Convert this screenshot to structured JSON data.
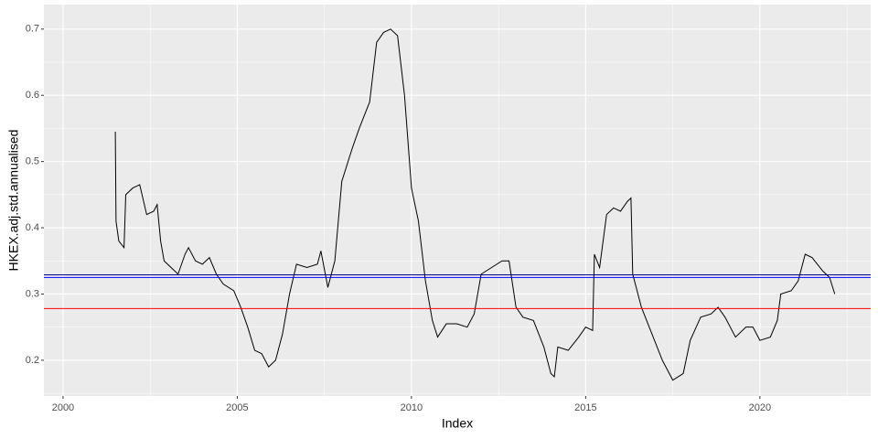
{
  "chart_data": {
    "type": "line",
    "x_label": "Index",
    "y_label": "HKEX.adj.std.annualised",
    "x": [
      2001.5,
      2001.52,
      2001.6,
      2001.75,
      2001.8,
      2002.0,
      2002.2,
      2002.4,
      2002.6,
      2002.7,
      2002.8,
      2002.9,
      2003.1,
      2003.3,
      2003.5,
      2003.6,
      2003.8,
      2004.0,
      2004.2,
      2004.4,
      2004.6,
      2004.9,
      2005.1,
      2005.3,
      2005.5,
      2005.7,
      2005.9,
      2006.1,
      2006.3,
      2006.5,
      2006.7,
      2007.0,
      2007.3,
      2007.4,
      2007.6,
      2007.8,
      2008.0,
      2008.3,
      2008.5,
      2008.8,
      2009.0,
      2009.2,
      2009.4,
      2009.6,
      2009.8,
      2010.0,
      2010.2,
      2010.4,
      2010.6,
      2010.75,
      2011.0,
      2011.3,
      2011.6,
      2011.8,
      2012.0,
      2012.3,
      2012.6,
      2012.8,
      2013.0,
      2013.2,
      2013.5,
      2013.8,
      2014.0,
      2014.1,
      2014.2,
      2014.5,
      2014.8,
      2015.0,
      2015.2,
      2015.25,
      2015.4,
      2015.6,
      2015.8,
      2016.0,
      2016.2,
      2016.3,
      2016.35,
      2016.6,
      2016.9,
      2017.2,
      2017.5,
      2017.8,
      2018.0,
      2018.3,
      2018.6,
      2018.8,
      2019.0,
      2019.3,
      2019.6,
      2019.8,
      2020.0,
      2020.3,
      2020.5,
      2020.6,
      2020.9,
      2021.1,
      2021.3,
      2021.5,
      2021.8,
      2022.0,
      2022.15
    ],
    "series": [
      {
        "color": "#000000",
        "values": [
          0.545,
          0.41,
          0.38,
          0.37,
          0.45,
          0.46,
          0.465,
          0.42,
          0.425,
          0.435,
          0.38,
          0.35,
          0.34,
          0.33,
          0.36,
          0.37,
          0.35,
          0.345,
          0.355,
          0.33,
          0.315,
          0.305,
          0.28,
          0.25,
          0.215,
          0.21,
          0.19,
          0.2,
          0.24,
          0.3,
          0.345,
          0.34,
          0.345,
          0.365,
          0.31,
          0.35,
          0.47,
          0.52,
          0.55,
          0.59,
          0.68,
          0.695,
          0.7,
          0.69,
          0.6,
          0.46,
          0.41,
          0.32,
          0.26,
          0.235,
          0.255,
          0.255,
          0.25,
          0.27,
          0.33,
          0.34,
          0.35,
          0.35,
          0.28,
          0.265,
          0.26,
          0.22,
          0.18,
          0.175,
          0.22,
          0.215,
          0.235,
          0.25,
          0.245,
          0.36,
          0.34,
          0.42,
          0.43,
          0.425,
          0.44,
          0.445,
          0.33,
          0.28,
          0.24,
          0.2,
          0.17,
          0.18,
          0.23,
          0.265,
          0.27,
          0.28,
          0.265,
          0.235,
          0.25,
          0.25,
          0.23,
          0.235,
          0.26,
          0.3,
          0.305,
          0.32,
          0.36,
          0.355,
          0.335,
          0.325,
          0.3
        ]
      }
    ],
    "hlines": [
      {
        "value": 0.278,
        "color": "#ff0000"
      },
      {
        "value": 0.329,
        "color": "#00008b"
      },
      {
        "value": 0.325,
        "color": "#0000ff"
      }
    ],
    "xlim": [
      1999.45,
      2023.18
    ],
    "xticks": [
      2000,
      2005,
      2010,
      2015,
      2020
    ],
    "ylim": [
      0.146,
      0.737
    ],
    "yticks": [
      0.2,
      0.3,
      0.4,
      0.5,
      0.6,
      0.7
    ],
    "grid": true,
    "panel_color": "#ebebeb"
  }
}
